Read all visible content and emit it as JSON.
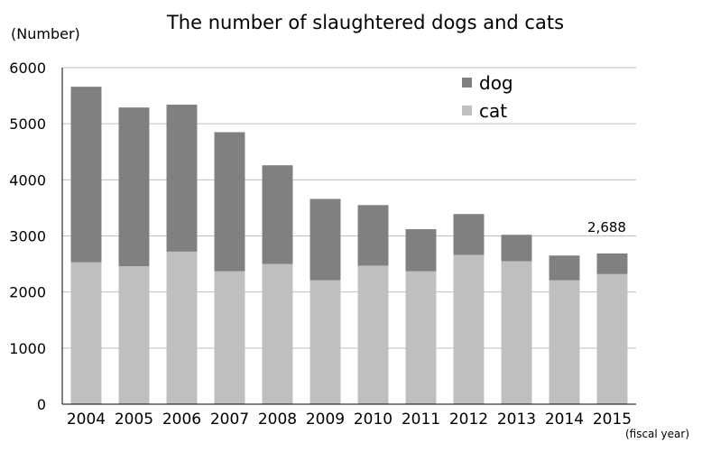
{
  "chart_data": {
    "type": "bar",
    "stacked": true,
    "title": "The number of slaughtered dogs and cats",
    "ylabel": "(Number)",
    "xlabel": "(fiscal year)",
    "ylim": [
      0,
      6000
    ],
    "yticks": [
      "0",
      "1000",
      "2000",
      "3000",
      "4000",
      "5000",
      "6000"
    ],
    "grid": true,
    "legend_position": "top-right",
    "categories": [
      "2004",
      "2005",
      "2006",
      "2007",
      "2008",
      "2009",
      "2010",
      "2011",
      "2012",
      "2013",
      "2014",
      "2015"
    ],
    "series": [
      {
        "name": "cat",
        "color": "#bfbfbf",
        "values": [
          2530,
          2460,
          2720,
          2370,
          2500,
          2210,
          2470,
          2370,
          2660,
          2550,
          2210,
          2320
        ]
      },
      {
        "name": "dog",
        "color": "#808080",
        "values": [
          3130,
          2830,
          2620,
          2480,
          1760,
          1450,
          1080,
          750,
          730,
          470,
          440,
          368
        ]
      }
    ],
    "annotations": [
      {
        "category": "2015",
        "text": "2,688"
      }
    ]
  }
}
